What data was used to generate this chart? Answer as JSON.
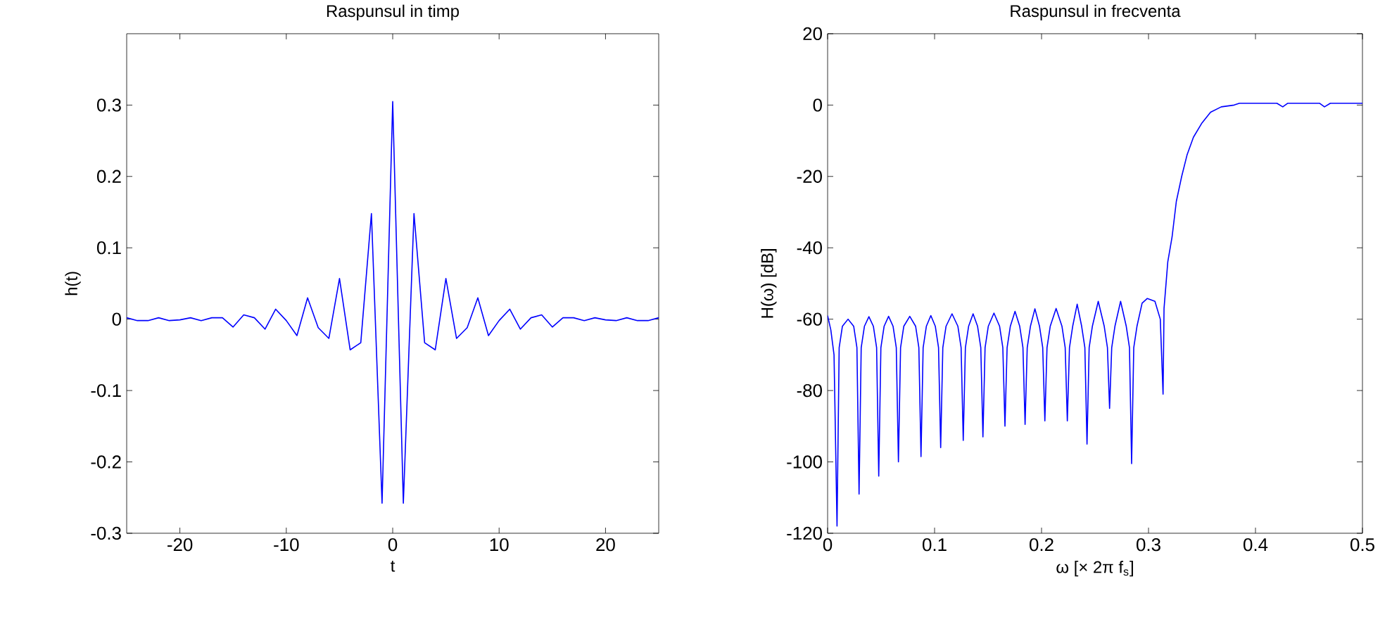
{
  "chart_data": [
    {
      "type": "line",
      "title": "Raspunsul in timp",
      "xlabel": "t",
      "ylabel": "h(t)",
      "x": [
        -25,
        -24,
        -23,
        -22,
        -21,
        -20,
        -19,
        -18,
        -17,
        -16,
        -15,
        -14,
        -13,
        -12,
        -11,
        -10,
        -9,
        -8,
        -7,
        -6,
        -5,
        -4,
        -3,
        -2,
        -1,
        0,
        1,
        2,
        3,
        4,
        5,
        6,
        7,
        8,
        9,
        10,
        11,
        12,
        13,
        14,
        15,
        16,
        17,
        18,
        19,
        20,
        21,
        22,
        23,
        24,
        25
      ],
      "series": [
        {
          "color": "#0000ff",
          "values": [
            0.002,
            -0.002,
            -0.002,
            0.002,
            -0.002,
            -0.001,
            0.002,
            -0.002,
            0.002,
            0.002,
            -0.011,
            0.006,
            0.002,
            -0.014,
            0.014,
            -0.002,
            -0.023,
            0.03,
            -0.012,
            -0.027,
            0.057,
            -0.043,
            -0.033,
            0.148,
            -0.258,
            0.305,
            -0.258,
            0.148,
            -0.033,
            -0.043,
            0.057,
            -0.027,
            -0.012,
            0.03,
            -0.023,
            -0.002,
            0.014,
            -0.014,
            0.002,
            0.006,
            -0.011,
            0.002,
            0.002,
            -0.002,
            0.002,
            -0.001,
            -0.002,
            0.002,
            -0.002,
            -0.002,
            0.002
          ]
        }
      ],
      "xlim": [
        -25,
        25
      ],
      "ylim": [
        -0.3,
        0.4
      ],
      "xticks": [
        -20,
        -10,
        0,
        10,
        20
      ],
      "yticks": [
        -0.3,
        -0.2,
        -0.1,
        0,
        0.1,
        0.2,
        0.3
      ]
    },
    {
      "type": "line",
      "title": "Raspunsul in frecventa",
      "xlabel": "ω [× 2π f$_{s}$]",
      "ylabel": "H(ω) [dB]",
      "x": [
        0,
        0.003,
        0.006,
        0.0088,
        0.0108,
        0.0138,
        0.0191,
        0.0244,
        0.0274,
        0.0294,
        0.0314,
        0.0344,
        0.0386,
        0.0428,
        0.0458,
        0.0478,
        0.0498,
        0.0528,
        0.057,
        0.0612,
        0.0642,
        0.0662,
        0.0682,
        0.0712,
        0.0768,
        0.0823,
        0.0853,
        0.0873,
        0.0893,
        0.0923,
        0.0965,
        0.1007,
        0.1037,
        0.1057,
        0.1077,
        0.1107,
        0.1163,
        0.1218,
        0.1248,
        0.1268,
        0.1288,
        0.1318,
        0.136,
        0.1402,
        0.1432,
        0.1452,
        0.1472,
        0.1502,
        0.1555,
        0.1608,
        0.1638,
        0.1658,
        0.1678,
        0.1708,
        0.1752,
        0.1796,
        0.1826,
        0.1846,
        0.1866,
        0.1896,
        0.1938,
        0.1981,
        0.2011,
        0.2031,
        0.2051,
        0.2081,
        0.2136,
        0.2191,
        0.2221,
        0.2241,
        0.2261,
        0.2291,
        0.2333,
        0.2375,
        0.2405,
        0.2425,
        0.2445,
        0.2475,
        0.253,
        0.2586,
        0.2616,
        0.2636,
        0.2656,
        0.2686,
        0.2739,
        0.2792,
        0.2822,
        0.2842,
        0.2862,
        0.2892,
        0.294,
        0.2989,
        0.306,
        0.311,
        0.3136,
        0.3145,
        0.318,
        0.322,
        0.326,
        0.331,
        0.336,
        0.342,
        0.35,
        0.358,
        0.368,
        0.38,
        0.385,
        0.42,
        0.4255,
        0.43,
        0.46,
        0.4645,
        0.47,
        0.5
      ],
      "series": [
        {
          "color": "#0000ff",
          "values": [
            -59,
            -63,
            -70,
            -118,
            -68,
            -62,
            -60,
            -62,
            -68,
            -109,
            -68,
            -62,
            -59.3,
            -62,
            -68,
            -104,
            -68,
            -62,
            -59.2,
            -62,
            -68,
            -100,
            -68,
            -62,
            -59.2,
            -62,
            -68,
            -98.5,
            -68,
            -62,
            -59,
            -62,
            -68,
            -96,
            -68,
            -62,
            -58.5,
            -62,
            -68,
            -94,
            -68,
            -62,
            -58.5,
            -62,
            -68,
            -93,
            -68,
            -62,
            -58.3,
            -62,
            -68,
            -90,
            -68,
            -62,
            -57.8,
            -62,
            -68,
            -89.5,
            -68,
            -62,
            -57.1,
            -62,
            -68,
            -88.5,
            -68,
            -62,
            -57,
            -62,
            -68,
            -88.5,
            -68,
            -62,
            -55.8,
            -62,
            -68,
            -95,
            -68,
            -62,
            -55,
            -62,
            -68,
            -85,
            -68,
            -62,
            -55,
            -62,
            -68,
            -100.5,
            -68,
            -62,
            -55.5,
            -54.2,
            -55,
            -60,
            -81,
            -57,
            -44,
            -37,
            -27,
            -20,
            -14,
            -9,
            -5,
            -2,
            -0.5,
            0,
            0.5,
            0.5,
            -0.5,
            0.5,
            0.5,
            -0.5,
            0.5,
            0.5
          ]
        }
      ],
      "xlim": [
        0,
        0.5
      ],
      "ylim": [
        -120,
        20
      ],
      "xticks": [
        0,
        0.1,
        0.2,
        0.3,
        0.4,
        0.5
      ],
      "yticks": [
        -120,
        -100,
        -80,
        -60,
        -40,
        -20,
        0,
        20
      ]
    }
  ]
}
